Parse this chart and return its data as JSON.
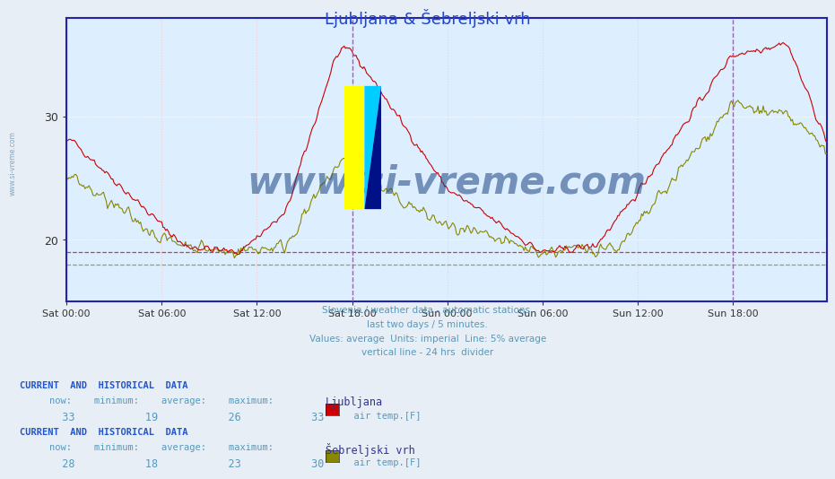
{
  "title": "Ljubljana & Šebreljski vrh",
  "subtitle_lines": [
    "Slovenia / weather data - automatic stations.",
    "last two days / 5 minutes.",
    "Values: average  Units: imperial  Line: 5% average",
    "vertical line - 24 hrs  divider"
  ],
  "bg_color": "#e8eef5",
  "plot_bg_color": "#ddeeff",
  "title_color": "#2244cc",
  "subtitle_color": "#5599bb",
  "header_color": "#2255cc",
  "label_color": "#5599bb",
  "axis_color": "#2222aa",
  "ymin": 15,
  "ymax": 38,
  "yticks": [
    20,
    30
  ],
  "n_points": 576,
  "lj_color": "#cc0000",
  "lj_hline": 19.0,
  "lj_now": 33,
  "lj_min": 19,
  "lj_avg": 26,
  "lj_max": 33,
  "seb_color": "#888800",
  "seb_hline": 18.0,
  "seb_now": 28,
  "seb_min": 18,
  "seb_avg": 23,
  "seb_max": 30,
  "vline_24h_color": "#cc44cc",
  "vline_start_color": "#2222aa",
  "grid_h_color": "#ffffff",
  "grid_v_color": "#ffcccc",
  "xtick_labels": [
    "Sat 00:00",
    "Sat 06:00",
    "Sat 12:00",
    "Sat 18:00",
    "Sun 00:00",
    "Sun 06:00",
    "Sun 12:00",
    "Sun 18:00"
  ],
  "xtick_positions": [
    0,
    72,
    144,
    216,
    288,
    360,
    432,
    504
  ],
  "watermark": "www.si-vreme.com",
  "watermark_color": "#1a4480"
}
